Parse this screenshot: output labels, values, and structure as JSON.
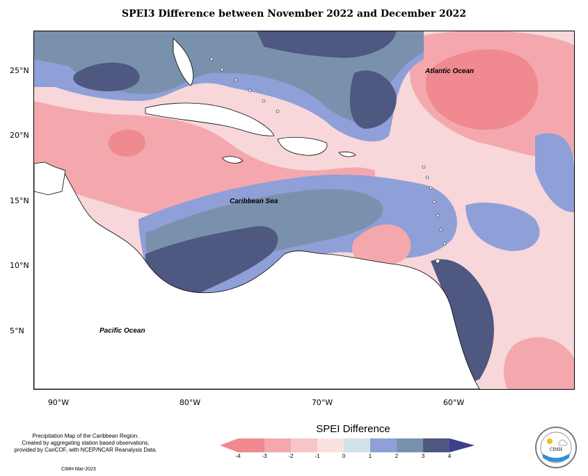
{
  "title": "SPEI3 Difference between November 2022 and December 2022",
  "lat_labels": [
    "25°N",
    "20°N",
    "15°N",
    "10°N",
    "5°N"
  ],
  "lon_labels": [
    "90°W",
    "80°W",
    "70°W",
    "60°W"
  ],
  "ocean_labels": {
    "atlantic": "Atlantic Ocean",
    "caribbean": "Caribbean Sea",
    "pacific": "Pacific Ocean"
  },
  "footnote": {
    "line1": "Precipitation Map of the Caribbean Region.",
    "line2": "Created by aggregating station based observations,",
    "line3": "provided by CariCOF, with NCEP/NCAR Reanalysis Data."
  },
  "credit": "CIMH Mar-2023",
  "legend": {
    "title": "SPEI Difference",
    "ticks": [
      "-4",
      "-3",
      "-2",
      "-1",
      "0",
      "1",
      "2",
      "3",
      "4"
    ],
    "colors": [
      "#f08a90",
      "#f4a8ad",
      "#f7c5c8",
      "#fbe1e2",
      "#fdf2f2",
      "#d2e2ea",
      "#8f9fd8",
      "#7a91ad",
      "#4e5880",
      "#3c3f8a"
    ]
  },
  "logo": {
    "text": "CIMH"
  }
}
